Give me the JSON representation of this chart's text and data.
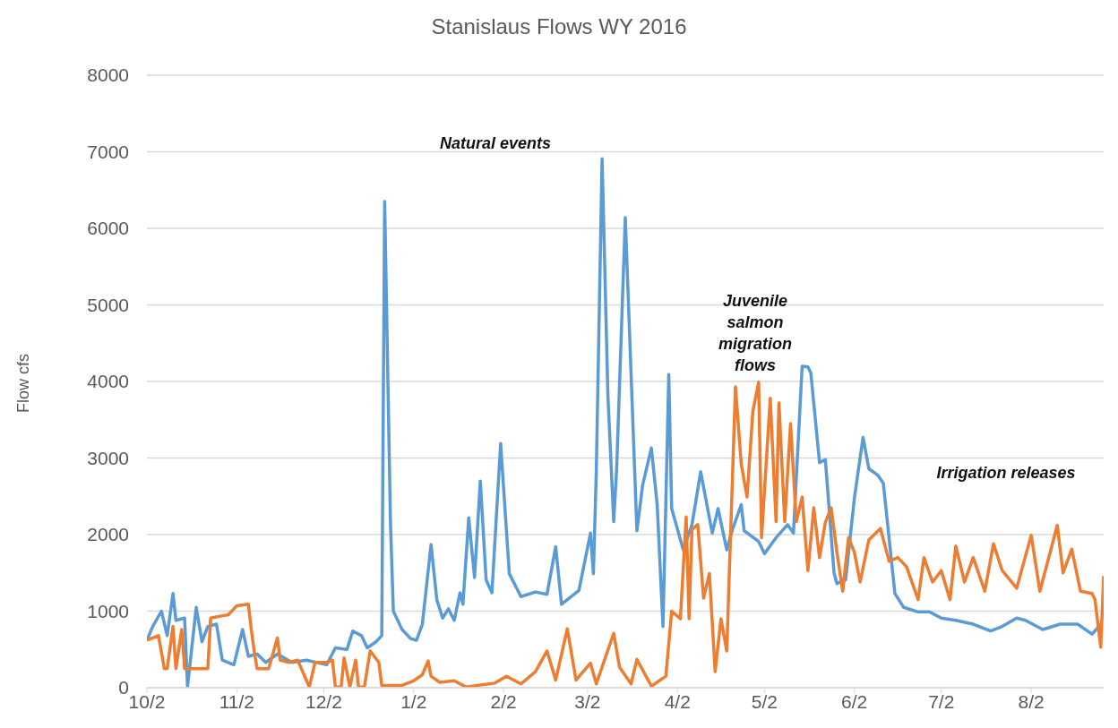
{
  "chart_data": {
    "type": "line",
    "title": "Stanislaus Flows WY 2016",
    "ylabel": "Flow cfs",
    "annotations": [
      "Natural events",
      "Juvenile salmon migration flows",
      "Irrigation releases"
    ],
    "xlim": [
      "2015-10-02",
      "2016-08-27"
    ],
    "xticks": [
      {
        "value": "2015-10-02",
        "label": "10/2"
      },
      {
        "value": "2015-11-02",
        "label": "11/2"
      },
      {
        "value": "2015-12-02",
        "label": "12/2"
      },
      {
        "value": "2016-01-02",
        "label": "1/2"
      },
      {
        "value": "2016-02-02",
        "label": "2/2"
      },
      {
        "value": "2016-03-02",
        "label": "3/2"
      },
      {
        "value": "2016-04-02",
        "label": "4/2"
      },
      {
        "value": "2016-05-02",
        "label": "5/2"
      },
      {
        "value": "2016-06-02",
        "label": "6/2"
      },
      {
        "value": "2016-07-02",
        "label": "7/2"
      },
      {
        "value": "2016-08-02",
        "label": "8/2"
      }
    ],
    "ylim": [
      0,
      8000
    ],
    "yticks": [
      0,
      1000,
      2000,
      3000,
      4000,
      5000,
      6000,
      7000,
      8000
    ],
    "grid": "y",
    "marker": "none",
    "line_style": "solid",
    "series": [
      {
        "color": "#5b9bd5",
        "x": [
          "2015-10-02",
          "2015-10-04",
          "2015-10-07",
          "2015-10-09",
          "2015-10-11",
          "2015-10-12",
          "2015-10-15",
          "2015-10-16",
          "2015-10-19",
          "2015-10-21",
          "2015-10-23",
          "2015-10-26",
          "2015-10-28",
          "2015-11-01",
          "2015-11-04",
          "2015-11-06",
          "2015-11-09",
          "2015-11-12",
          "2015-11-16",
          "2015-11-21",
          "2015-11-26",
          "2015-12-03",
          "2015-12-06",
          "2015-12-10",
          "2015-12-12",
          "2015-12-15",
          "2015-12-17",
          "2015-12-20",
          "2015-12-22",
          "2015-12-23",
          "2015-12-25",
          "2015-12-26",
          "2015-12-29",
          "2016-01-01",
          "2016-01-03",
          "2016-01-05",
          "2016-01-08",
          "2016-01-10",
          "2016-01-12",
          "2016-01-14",
          "2016-01-16",
          "2016-01-18",
          "2016-01-19",
          "2016-01-21",
          "2016-01-23",
          "2016-01-25",
          "2016-01-27",
          "2016-01-29",
          "2016-02-01",
          "2016-02-04",
          "2016-02-08",
          "2016-02-13",
          "2016-02-17",
          "2016-02-20",
          "2016-02-22",
          "2016-02-28",
          "2016-03-03",
          "2016-03-04",
          "2016-03-05",
          "2016-03-07",
          "2016-03-09",
          "2016-03-11",
          "2016-03-12",
          "2016-03-15",
          "2016-03-19",
          "2016-03-21",
          "2016-03-24",
          "2016-03-26",
          "2016-03-28",
          "2016-03-30",
          "2016-03-31",
          "2016-04-04",
          "2016-04-07",
          "2016-04-10",
          "2016-04-14",
          "2016-04-16",
          "2016-04-19",
          "2016-04-21",
          "2016-04-24",
          "2016-04-25",
          "2016-04-30",
          "2016-05-02",
          "2016-05-06",
          "2016-05-10",
          "2016-05-12",
          "2016-05-15",
          "2016-05-17",
          "2016-05-18",
          "2016-05-21",
          "2016-05-23",
          "2016-05-26",
          "2016-05-27",
          "2016-05-30",
          "2016-06-02",
          "2016-06-05",
          "2016-06-07",
          "2016-06-10",
          "2016-06-12",
          "2016-06-16",
          "2016-06-19",
          "2016-06-24",
          "2016-06-28",
          "2016-07-02",
          "2016-07-07",
          "2016-07-13",
          "2016-07-19",
          "2016-07-23",
          "2016-07-28",
          "2016-07-31",
          "2016-08-06",
          "2016-08-12",
          "2016-08-18",
          "2016-08-23",
          "2016-08-26"
        ],
        "values": [
          620,
          800,
          1000,
          680,
          1230,
          880,
          910,
          10,
          1050,
          600,
          800,
          830,
          360,
          300,
          760,
          410,
          440,
          330,
          440,
          330,
          360,
          300,
          520,
          500,
          740,
          680,
          520,
          600,
          680,
          6350,
          2160,
          1000,
          760,
          640,
          620,
          830,
          1870,
          1150,
          910,
          1030,
          880,
          1240,
          1090,
          2220,
          1440,
          2700,
          1410,
          1240,
          3190,
          1490,
          1190,
          1250,
          1220,
          1840,
          1090,
          1270,
          2020,
          1490,
          2820,
          6910,
          3820,
          2170,
          2840,
          6140,
          2050,
          2650,
          3130,
          2390,
          800,
          4090,
          2340,
          1800,
          2130,
          2820,
          2020,
          2340,
          1800,
          2070,
          2390,
          2050,
          1910,
          1750,
          1960,
          2130,
          2020,
          4200,
          4190,
          4110,
          2940,
          2980,
          1500,
          1360,
          1410,
          2470,
          3270,
          2860,
          2780,
          2670,
          1230,
          1050,
          990,
          990,
          910,
          880,
          830,
          740,
          800,
          910,
          880,
          760,
          830,
          830,
          700,
          830
        ]
      },
      {
        "color": "#ed7d31",
        "x": [
          "2015-10-02",
          "2015-10-06",
          "2015-10-08",
          "2015-10-09",
          "2015-10-11",
          "2015-10-12",
          "2015-10-14",
          "2015-10-15",
          "2015-10-18",
          "2015-10-23",
          "2015-10-24",
          "2015-10-28",
          "2015-10-30",
          "2015-11-02",
          "2015-11-06",
          "2015-11-07",
          "2015-11-08",
          "2015-11-09",
          "2015-11-13",
          "2015-11-16",
          "2015-11-17",
          "2015-11-20",
          "2015-11-23",
          "2015-11-27",
          "2015-11-29",
          "2015-12-03",
          "2015-12-05",
          "2015-12-06",
          "2015-12-08",
          "2015-12-09",
          "2015-12-11",
          "2015-12-13",
          "2015-12-14",
          "2015-12-16",
          "2015-12-18",
          "2015-12-21",
          "2015-12-22",
          "2015-12-29",
          "2016-01-02",
          "2016-01-05",
          "2016-01-07",
          "2016-01-08",
          "2016-01-11",
          "2016-01-16",
          "2016-01-20",
          "2016-01-30",
          "2016-02-03",
          "2016-02-08",
          "2016-02-13",
          "2016-02-17",
          "2016-02-20",
          "2016-02-24",
          "2016-02-27",
          "2016-03-03",
          "2016-03-05",
          "2016-03-11",
          "2016-03-13",
          "2016-03-17",
          "2016-03-19",
          "2016-03-24",
          "2016-03-29",
          "2016-03-31",
          "2016-04-03",
          "2016-04-05",
          "2016-04-06",
          "2016-04-07",
          "2016-04-09",
          "2016-04-11",
          "2016-04-13",
          "2016-04-15",
          "2016-04-17",
          "2016-04-19",
          "2016-04-22",
          "2016-04-24",
          "2016-04-26",
          "2016-04-28",
          "2016-04-30",
          "2016-05-01",
          "2016-05-04",
          "2016-05-06",
          "2016-05-07",
          "2016-05-09",
          "2016-05-11",
          "2016-05-13",
          "2016-05-15",
          "2016-05-17",
          "2016-05-19",
          "2016-05-21",
          "2016-05-23",
          "2016-05-25",
          "2016-05-27",
          "2016-05-29",
          "2016-05-31",
          "2016-06-02",
          "2016-06-04",
          "2016-06-07",
          "2016-06-11",
          "2016-06-14",
          "2016-06-17",
          "2016-06-20",
          "2016-06-24",
          "2016-06-26",
          "2016-06-29",
          "2016-07-02",
          "2016-07-05",
          "2016-07-07",
          "2016-07-10",
          "2016-07-13",
          "2016-07-17",
          "2016-07-20",
          "2016-07-23",
          "2016-07-28",
          "2016-08-02",
          "2016-08-05",
          "2016-08-11",
          "2016-08-13",
          "2016-08-16",
          "2016-08-19",
          "2016-08-23",
          "2016-08-24",
          "2016-08-26",
          "2016-08-27"
        ],
        "values": [
          620,
          680,
          250,
          250,
          800,
          250,
          760,
          250,
          250,
          250,
          910,
          940,
          950,
          1070,
          1090,
          760,
          480,
          250,
          250,
          650,
          360,
          330,
          360,
          10,
          330,
          330,
          360,
          10,
          10,
          390,
          10,
          360,
          10,
          10,
          480,
          330,
          30,
          30,
          90,
          170,
          350,
          150,
          70,
          90,
          10,
          60,
          150,
          50,
          210,
          480,
          100,
          770,
          100,
          320,
          50,
          710,
          270,
          50,
          370,
          20,
          150,
          1000,
          900,
          2230,
          900,
          2070,
          2130,
          1170,
          1490,
          210,
          900,
          480,
          3930,
          2920,
          2490,
          3610,
          3990,
          1960,
          3780,
          2170,
          3720,
          2170,
          3450,
          2170,
          2490,
          1530,
          2350,
          1700,
          2160,
          2350,
          1770,
          1260,
          1960,
          1770,
          1380,
          1930,
          2080,
          1650,
          1700,
          1580,
          1150,
          1700,
          1380,
          1530,
          1150,
          1850,
          1380,
          1700,
          1260,
          1880,
          1530,
          1300,
          1990,
          1260,
          2120,
          1500,
          1810,
          1260,
          1230,
          1150,
          530,
          1460
        ]
      }
    ]
  }
}
